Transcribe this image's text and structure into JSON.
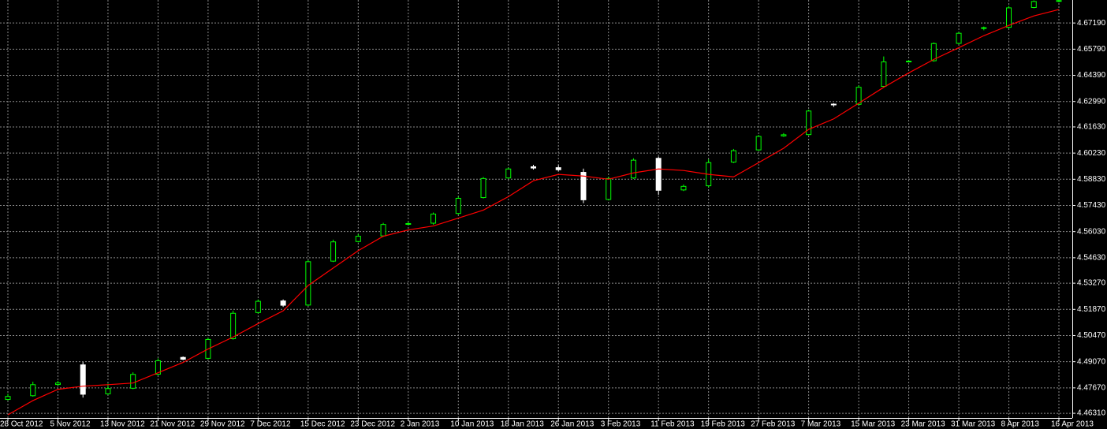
{
  "chart_data": {
    "type": "candlestick",
    "categories": [
      "28 Oct 2012",
      null,
      "5 Nov 2012",
      null,
      "13 Nov 2012",
      null,
      "21 Nov 2012",
      null,
      "29 Nov 2012",
      null,
      "7 Dec 2012",
      null,
      "15 Dec 2012",
      null,
      "23 Dec 2012",
      null,
      "2 Jan 2013",
      null,
      "10 Jan 2013",
      null,
      "18 Jan 2013",
      null,
      "26 Jan 2013",
      null,
      "3 Feb 2013",
      null,
      "11 Feb 2013",
      null,
      "19 Feb 2013",
      null,
      "27 Feb 2013",
      null,
      "7 Mar 2013",
      null,
      "15 Mar 2013",
      null,
      "23 Mar 2013",
      null,
      "31 Mar 2013",
      null,
      "8 Apr 2013",
      null,
      "16 Apr 2013"
    ],
    "open": [
      4.4705,
      4.4725,
      4.4785,
      4.489,
      4.4735,
      4.4765,
      4.484,
      4.493,
      4.4925,
      4.503,
      4.517,
      4.5232,
      4.521,
      4.5445,
      4.555,
      4.558,
      4.5642,
      4.5648,
      4.57,
      4.5785,
      4.589,
      4.595,
      4.5945,
      4.592,
      4.5775,
      4.589,
      4.5995,
      4.5826,
      4.5848,
      4.5975,
      4.604,
      4.6115,
      4.6122,
      4.6285,
      4.6284,
      4.638,
      4.6512,
      4.6517,
      4.661,
      4.669,
      4.6696,
      4.6802,
      4.6835
    ],
    "high": [
      4.4735,
      4.48,
      4.4805,
      4.4905,
      4.479,
      4.485,
      4.4925,
      4.4935,
      4.5035,
      4.518,
      4.524,
      4.524,
      4.545,
      4.556,
      4.559,
      4.565,
      4.5655,
      4.5705,
      4.579,
      4.5895,
      4.5945,
      4.596,
      4.5958,
      4.594,
      4.5895,
      4.5995,
      4.6005,
      4.5855,
      4.599,
      4.6045,
      4.612,
      4.613,
      4.6255,
      4.629,
      4.6385,
      4.654,
      4.652,
      4.6615,
      4.667,
      4.67,
      4.681,
      4.684,
      4.6841
    ],
    "low": [
      4.47,
      4.472,
      4.478,
      4.4715,
      4.473,
      4.476,
      4.4835,
      4.4915,
      4.492,
      4.5025,
      4.5165,
      4.52,
      4.5205,
      4.544,
      4.5545,
      4.5575,
      4.5638,
      4.564,
      4.5695,
      4.578,
      4.5885,
      4.5935,
      4.5928,
      4.5755,
      4.577,
      4.5885,
      4.58,
      4.582,
      4.584,
      4.597,
      4.6035,
      4.611,
      4.6118,
      4.627,
      4.628,
      4.6375,
      4.6508,
      4.6512,
      4.6605,
      4.668,
      4.669,
      4.6798,
      4.683
    ],
    "close": [
      4.4721,
      4.4784,
      4.4793,
      4.4733,
      4.4763,
      4.4839,
      4.4912,
      4.492,
      4.5026,
      4.5166,
      4.523,
      4.5209,
      4.5442,
      4.5548,
      4.5578,
      4.5641,
      4.5646,
      4.5697,
      4.5781,
      4.5887,
      4.5938,
      4.5943,
      4.5934,
      4.5773,
      4.5887,
      4.5985,
      4.5824,
      4.5845,
      4.5972,
      4.6036,
      4.6112,
      4.6121,
      4.6248,
      4.6282,
      4.6375,
      4.6511,
      4.6515,
      4.6609,
      4.6664,
      4.6694,
      4.68,
      4.6834,
      4.6839
    ],
    "up_color": "#00ff00",
    "down_color": "#ffffff",
    "overlay": {
      "type": "line",
      "color": "#ff0000",
      "values": [
        4.4623,
        4.4699,
        4.4759,
        4.4776,
        4.4784,
        4.4793,
        4.4848,
        4.4903,
        4.4975,
        4.5039,
        4.5111,
        4.5179,
        4.5315,
        4.5408,
        4.5501,
        4.5578,
        4.5612,
        4.5633,
        4.5675,
        4.5718,
        4.579,
        4.5875,
        4.5909,
        4.59,
        4.5883,
        4.5917,
        4.5938,
        4.593,
        4.5909,
        4.5896,
        4.5972,
        4.6049,
        4.615,
        4.6206,
        4.629,
        4.6375,
        4.6452,
        4.6524,
        4.6587,
        4.6651,
        4.6706,
        4.6757,
        4.6791
      ]
    },
    "ylim": [
      4.4606,
      4.6842
    ],
    "yticks": [
      {
        "value": 4.4631,
        "label": "4.46310"
      },
      {
        "value": 4.4767,
        "label": "4.47670"
      },
      {
        "value": 4.4907,
        "label": "4.49070"
      },
      {
        "value": 4.5047,
        "label": "4.50470"
      },
      {
        "value": 4.5187,
        "label": "4.51870"
      },
      {
        "value": 4.5327,
        "label": "4.53270"
      },
      {
        "value": 4.5463,
        "label": "4.54630"
      },
      {
        "value": 4.5603,
        "label": "4.56030"
      },
      {
        "value": 4.5743,
        "label": "4.57430"
      },
      {
        "value": 4.5883,
        "label": "4.58830"
      },
      {
        "value": 4.6023,
        "label": "4.60230"
      },
      {
        "value": 4.6163,
        "label": "4.61630"
      },
      {
        "value": 4.6299,
        "label": "4.62990"
      },
      {
        "value": 4.6439,
        "label": "4.64390"
      },
      {
        "value": 4.6579,
        "label": "4.65790"
      },
      {
        "value": 4.6719,
        "label": "4.67190"
      }
    ],
    "grid": true,
    "grid_color": "#8a8a8a"
  }
}
